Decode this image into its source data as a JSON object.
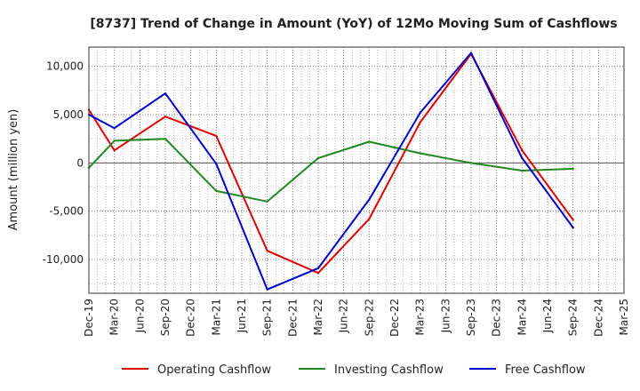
{
  "chart_data": {
    "type": "line",
    "title": "[8737]  Trend of Change in Amount (YoY) of 12Mo Moving Sum of Cashflows",
    "xlabel": "",
    "ylabel": "Amount (million yen)",
    "ylim": [
      -13500,
      12000
    ],
    "yticks": [
      10000,
      5000,
      0,
      -5000,
      -10000
    ],
    "ytick_labels": [
      "10,000",
      "5,000",
      "0",
      "-5,000",
      "-10,000"
    ],
    "grid": true,
    "legend_position": "bottom",
    "categories": [
      "Dec-19",
      "Mar-20",
      "Jun-20",
      "Sep-20",
      "Dec-20",
      "Mar-21",
      "Jun-21",
      "Sep-21",
      "Dec-21",
      "Mar-22",
      "Jun-22",
      "Sep-22",
      "Dec-22",
      "Mar-23",
      "Jun-23",
      "Sep-23",
      "Dec-23",
      "Mar-24",
      "Jun-24",
      "Sep-24",
      "Dec-24",
      "Mar-25"
    ],
    "series": [
      {
        "name": "Operating Cashflow",
        "color": "#dd0000",
        "values": [
          5500,
          1300,
          null,
          4800,
          null,
          2800,
          null,
          -9100,
          null,
          -11400,
          null,
          -5800,
          null,
          4200,
          null,
          11300,
          null,
          1300,
          null,
          -5900,
          null,
          null
        ]
      },
      {
        "name": "Investing Cashflow",
        "color": "#228822",
        "values": [
          -500,
          2300,
          null,
          2500,
          null,
          -2900,
          null,
          -4000,
          null,
          500,
          null,
          2200,
          null,
          1000,
          null,
          0,
          null,
          -800,
          null,
          -600,
          null,
          null
        ]
      },
      {
        "name": "Free Cashflow",
        "color": "#0000cc",
        "values": [
          5000,
          3600,
          null,
          7200,
          null,
          -100,
          null,
          -13100,
          null,
          -10900,
          null,
          -3800,
          null,
          5200,
          null,
          11400,
          null,
          500,
          null,
          -6700,
          null,
          null
        ]
      }
    ]
  }
}
